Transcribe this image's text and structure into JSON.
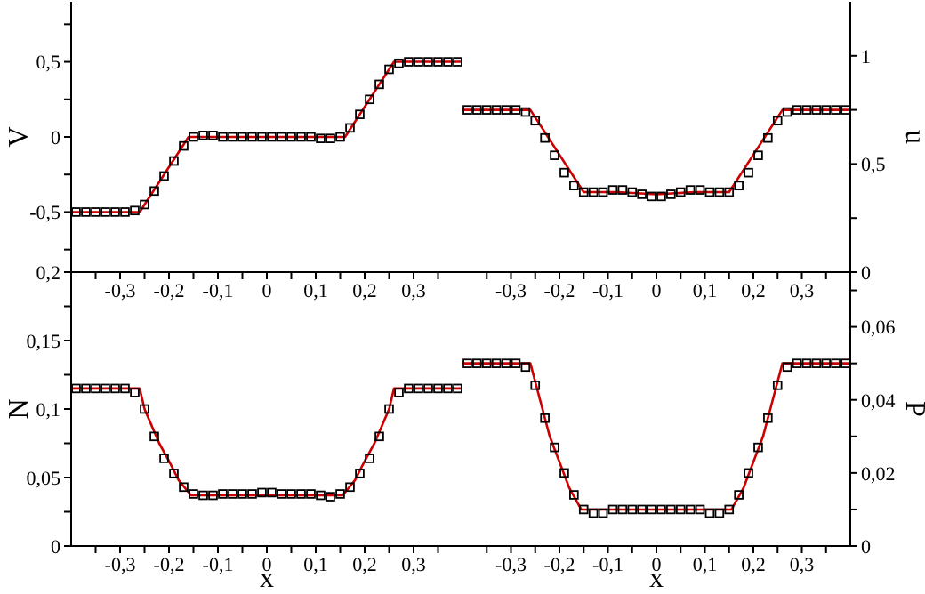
{
  "chart_data": [
    {
      "type": "line",
      "ylabel": "V",
      "xlim": [
        -0.4,
        0.4
      ],
      "ylim": [
        -0.9,
        0.9
      ],
      "xticks": [
        {
          "value": -0.35,
          "label": null
        },
        {
          "value": -0.3,
          "label": "-0,3"
        },
        {
          "value": -0.25,
          "label": null
        },
        {
          "value": -0.2,
          "label": "-0,2"
        },
        {
          "value": -0.15,
          "label": null
        },
        {
          "value": -0.1,
          "label": "-0,1"
        },
        {
          "value": -0.05,
          "label": null
        },
        {
          "value": 0,
          "label": "0"
        },
        {
          "value": 0.05,
          "label": null
        },
        {
          "value": 0.1,
          "label": "0,1"
        },
        {
          "value": 0.15,
          "label": null
        },
        {
          "value": 0.2,
          "label": "0,2"
        },
        {
          "value": 0.25,
          "label": null
        },
        {
          "value": 0.3,
          "label": "0,3"
        },
        {
          "value": 0.35,
          "label": null
        }
      ],
      "yticks": [
        {
          "value": -0.75,
          "label": null
        },
        {
          "value": -0.5,
          "label": "-0,5"
        },
        {
          "value": -0.25,
          "label": null
        },
        {
          "value": 0,
          "label": "0"
        },
        {
          "value": 0.25,
          "label": null
        },
        {
          "value": 0.5,
          "label": "0,5"
        },
        {
          "value": 0.75,
          "label": null
        }
      ],
      "series": [
        {
          "type": "line",
          "color": "#cc0000",
          "marker": "none",
          "x": [
            -0.4,
            -0.26,
            -0.16,
            0.16,
            0.26,
            0.4
          ],
          "values": [
            -0.5,
            -0.5,
            0,
            0,
            0.5,
            0.5
          ]
        },
        {
          "type": "scatter",
          "color": "#000000",
          "marker": "square",
          "x": [
            -0.39,
            -0.37,
            -0.35,
            -0.33,
            -0.31,
            -0.29,
            -0.27,
            -0.25,
            -0.23,
            -0.21,
            -0.19,
            -0.17,
            -0.15,
            -0.13,
            -0.11,
            -0.09,
            -0.07,
            -0.05,
            -0.03,
            -0.01,
            0.01,
            0.03,
            0.05,
            0.07,
            0.09,
            0.11,
            0.13,
            0.15,
            0.17,
            0.19,
            0.21,
            0.23,
            0.25,
            0.27,
            0.29,
            0.31,
            0.33,
            0.35,
            0.37,
            0.39
          ],
          "values": [
            -0.5,
            -0.5,
            -0.5,
            -0.5,
            -0.5,
            -0.5,
            -0.49,
            -0.45,
            -0.36,
            -0.26,
            -0.16,
            -0.06,
            0,
            0.01,
            0.01,
            0,
            0,
            0,
            0,
            0,
            0,
            0,
            0,
            0,
            0,
            -0.01,
            -0.01,
            0,
            0.06,
            0.15,
            0.25,
            0.35,
            0.45,
            0.49,
            0.5,
            0.5,
            0.5,
            0.5,
            0.5,
            0.5
          ]
        }
      ]
    },
    {
      "type": "line",
      "y2label": "u",
      "xlim": [
        -0.4,
        0.4
      ],
      "y2lim": [
        0,
        1.25
      ],
      "xticks": [
        {
          "value": -0.35,
          "label": null
        },
        {
          "value": -0.3,
          "label": "-0,3"
        },
        {
          "value": -0.25,
          "label": null
        },
        {
          "value": -0.2,
          "label": "-0,2"
        },
        {
          "value": -0.15,
          "label": null
        },
        {
          "value": -0.1,
          "label": "-0,1"
        },
        {
          "value": -0.05,
          "label": null
        },
        {
          "value": 0,
          "label": "0"
        },
        {
          "value": 0.05,
          "label": null
        },
        {
          "value": 0.1,
          "label": "0,1"
        },
        {
          "value": 0.15,
          "label": null
        },
        {
          "value": 0.2,
          "label": "0,2"
        },
        {
          "value": 0.25,
          "label": null
        },
        {
          "value": 0.3,
          "label": "0,3"
        },
        {
          "value": 0.35,
          "label": null
        }
      ],
      "y2ticks": [
        {
          "value": 0,
          "label": "0"
        },
        {
          "value": 0.25,
          "label": null
        },
        {
          "value": 0.5,
          "label": "0,5"
        },
        {
          "value": 0.75,
          "label": null
        },
        {
          "value": 1,
          "label": "1"
        }
      ],
      "series": [
        {
          "type": "line",
          "axis": "y2",
          "color": "#cc0000",
          "marker": "none",
          "x": [
            -0.4,
            -0.26,
            -0.15,
            -0.08,
            0,
            0.08,
            0.15,
            0.26,
            0.4
          ],
          "values": [
            0.75,
            0.75,
            0.37,
            0.37,
            0.36,
            0.37,
            0.37,
            0.75,
            0.75
          ]
        },
        {
          "type": "scatter",
          "axis": "y2",
          "color": "#000000",
          "marker": "square",
          "x": [
            -0.39,
            -0.37,
            -0.35,
            -0.33,
            -0.31,
            -0.29,
            -0.27,
            -0.25,
            -0.23,
            -0.21,
            -0.19,
            -0.17,
            -0.15,
            -0.13,
            -0.11,
            -0.09,
            -0.07,
            -0.05,
            -0.03,
            -0.01,
            0.01,
            0.03,
            0.05,
            0.07,
            0.09,
            0.11,
            0.13,
            0.15,
            0.17,
            0.19,
            0.21,
            0.23,
            0.25,
            0.27,
            0.29,
            0.31,
            0.33,
            0.35,
            0.37,
            0.39
          ],
          "values": [
            0.75,
            0.75,
            0.75,
            0.75,
            0.75,
            0.75,
            0.74,
            0.7,
            0.62,
            0.54,
            0.46,
            0.4,
            0.37,
            0.37,
            0.37,
            0.38,
            0.38,
            0.37,
            0.36,
            0.35,
            0.35,
            0.36,
            0.37,
            0.38,
            0.38,
            0.37,
            0.37,
            0.37,
            0.4,
            0.46,
            0.54,
            0.62,
            0.7,
            0.74,
            0.75,
            0.75,
            0.75,
            0.75,
            0.75,
            0.75
          ]
        }
      ]
    },
    {
      "type": "line",
      "ylabel": "N",
      "xlabel": "x",
      "xlim": [
        -0.4,
        0.4
      ],
      "ylim": [
        0,
        0.2
      ],
      "xticks": [
        {
          "value": -0.35,
          "label": null
        },
        {
          "value": -0.3,
          "label": "-0,3"
        },
        {
          "value": -0.25,
          "label": null
        },
        {
          "value": -0.2,
          "label": "-0,2"
        },
        {
          "value": -0.15,
          "label": null
        },
        {
          "value": -0.1,
          "label": "-0,1"
        },
        {
          "value": -0.05,
          "label": null
        },
        {
          "value": 0,
          "label": "0"
        },
        {
          "value": 0.05,
          "label": null
        },
        {
          "value": 0.1,
          "label": "0,1"
        },
        {
          "value": 0.15,
          "label": null
        },
        {
          "value": 0.2,
          "label": "0,2"
        },
        {
          "value": 0.25,
          "label": null
        },
        {
          "value": 0.3,
          "label": "0,3"
        },
        {
          "value": 0.35,
          "label": null
        }
      ],
      "yticks": [
        {
          "value": 0,
          "label": "0"
        },
        {
          "value": 0.025,
          "label": null
        },
        {
          "value": 0.05,
          "label": "0,05"
        },
        {
          "value": 0.075,
          "label": null
        },
        {
          "value": 0.1,
          "label": "0,1"
        },
        {
          "value": 0.125,
          "label": null
        },
        {
          "value": 0.15,
          "label": "0,15"
        },
        {
          "value": 0.175,
          "label": null
        },
        {
          "value": 0.2,
          "label": "0,2"
        }
      ],
      "series": [
        {
          "type": "line",
          "color": "#cc0000",
          "marker": "none",
          "x": [
            -0.4,
            -0.26,
            -0.25,
            -0.22,
            -0.2,
            -0.18,
            -0.155,
            0.155,
            0.18,
            0.2,
            0.22,
            0.25,
            0.26,
            0.4
          ],
          "values": [
            0.115,
            0.115,
            0.1,
            0.075,
            0.062,
            0.048,
            0.037,
            0.037,
            0.048,
            0.062,
            0.075,
            0.1,
            0.115,
            0.115
          ]
        },
        {
          "type": "scatter",
          "color": "#000000",
          "marker": "square",
          "x": [
            -0.39,
            -0.37,
            -0.35,
            -0.33,
            -0.31,
            -0.29,
            -0.27,
            -0.25,
            -0.23,
            -0.21,
            -0.19,
            -0.17,
            -0.15,
            -0.13,
            -0.11,
            -0.09,
            -0.07,
            -0.05,
            -0.03,
            -0.01,
            0.01,
            0.03,
            0.05,
            0.07,
            0.09,
            0.11,
            0.13,
            0.15,
            0.17,
            0.19,
            0.21,
            0.23,
            0.25,
            0.27,
            0.29,
            0.31,
            0.33,
            0.35,
            0.37,
            0.39
          ],
          "values": [
            0.115,
            0.115,
            0.115,
            0.115,
            0.115,
            0.115,
            0.112,
            0.1,
            0.08,
            0.064,
            0.053,
            0.043,
            0.038,
            0.037,
            0.037,
            0.038,
            0.038,
            0.038,
            0.038,
            0.039,
            0.039,
            0.038,
            0.038,
            0.038,
            0.038,
            0.037,
            0.036,
            0.038,
            0.043,
            0.053,
            0.064,
            0.08,
            0.1,
            0.112,
            0.115,
            0.115,
            0.115,
            0.115,
            0.115,
            0.115
          ]
        }
      ]
    },
    {
      "type": "line",
      "y2label": "P",
      "xlabel": "x",
      "xlim": [
        -0.4,
        0.4
      ],
      "y2lim": [
        0,
        0.075
      ],
      "xticks": [
        {
          "value": -0.35,
          "label": null
        },
        {
          "value": -0.3,
          "label": "-0,3"
        },
        {
          "value": -0.25,
          "label": null
        },
        {
          "value": -0.2,
          "label": "-0,2"
        },
        {
          "value": -0.15,
          "label": null
        },
        {
          "value": -0.1,
          "label": "-0,1"
        },
        {
          "value": -0.05,
          "label": null
        },
        {
          "value": 0,
          "label": "0"
        },
        {
          "value": 0.05,
          "label": null
        },
        {
          "value": 0.1,
          "label": "0,1"
        },
        {
          "value": 0.15,
          "label": null
        },
        {
          "value": 0.2,
          "label": "0,2"
        },
        {
          "value": 0.25,
          "label": null
        },
        {
          "value": 0.3,
          "label": "0,3"
        },
        {
          "value": 0.35,
          "label": null
        }
      ],
      "y2ticks": [
        {
          "value": 0,
          "label": "0"
        },
        {
          "value": 0.01,
          "label": null
        },
        {
          "value": 0.02,
          "label": "0,02"
        },
        {
          "value": 0.03,
          "label": null
        },
        {
          "value": 0.04,
          "label": "0,04"
        },
        {
          "value": 0.05,
          "label": null
        },
        {
          "value": 0.06,
          "label": "0,06"
        },
        {
          "value": 0.07,
          "label": null
        }
      ],
      "series": [
        {
          "type": "line",
          "axis": "y2",
          "color": "#cc0000",
          "marker": "none",
          "x": [
            -0.4,
            -0.26,
            -0.24,
            -0.22,
            -0.2,
            -0.18,
            -0.155,
            0.155,
            0.18,
            0.2,
            0.22,
            0.24,
            0.26,
            0.4
          ],
          "values": [
            0.05,
            0.05,
            0.04,
            0.03,
            0.023,
            0.016,
            0.01,
            0.01,
            0.016,
            0.023,
            0.03,
            0.04,
            0.05,
            0.05
          ]
        },
        {
          "type": "scatter",
          "axis": "y2",
          "color": "#000000",
          "marker": "square",
          "x": [
            -0.39,
            -0.37,
            -0.35,
            -0.33,
            -0.31,
            -0.29,
            -0.27,
            -0.25,
            -0.23,
            -0.21,
            -0.19,
            -0.17,
            -0.15,
            -0.13,
            -0.11,
            -0.09,
            -0.07,
            -0.05,
            -0.03,
            -0.01,
            0.01,
            0.03,
            0.05,
            0.07,
            0.09,
            0.11,
            0.13,
            0.15,
            0.17,
            0.19,
            0.21,
            0.23,
            0.25,
            0.27,
            0.29,
            0.31,
            0.33,
            0.35,
            0.37,
            0.39
          ],
          "values": [
            0.05,
            0.05,
            0.05,
            0.05,
            0.05,
            0.05,
            0.049,
            0.044,
            0.035,
            0.027,
            0.02,
            0.014,
            0.01,
            0.009,
            0.009,
            0.01,
            0.01,
            0.01,
            0.01,
            0.01,
            0.01,
            0.01,
            0.01,
            0.01,
            0.01,
            0.009,
            0.009,
            0.01,
            0.014,
            0.02,
            0.027,
            0.035,
            0.044,
            0.049,
            0.05,
            0.05,
            0.05,
            0.05,
            0.05,
            0.05
          ]
        }
      ]
    }
  ]
}
